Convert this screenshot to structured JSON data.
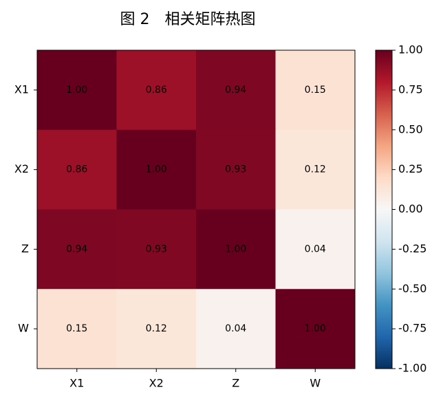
{
  "chart_data": {
    "type": "heatmap",
    "title": "图 2　相关矩阵热图",
    "x_categories": [
      "X1",
      "X2",
      "Z",
      "W"
    ],
    "y_categories": [
      "X1",
      "X2",
      "Z",
      "W"
    ],
    "values": [
      [
        1,
        0.86,
        0.94,
        0.15
      ],
      [
        0.86,
        1,
        0.93,
        0.12
      ],
      [
        0.94,
        0.93,
        1,
        0.04
      ],
      [
        0.15,
        0.12,
        0.04,
        1
      ]
    ],
    "value_labels": [
      [
        "1.00",
        "0.86",
        "0.94",
        "0.15"
      ],
      [
        "0.86",
        "1.00",
        "0.93",
        "0.12"
      ],
      [
        "0.94",
        "0.93",
        "1.00",
        "0.04"
      ],
      [
        "0.15",
        "0.12",
        "0.04",
        "1.00"
      ]
    ],
    "colormap": "RdBu_r",
    "clim": [
      -1,
      1
    ],
    "cticks": [
      {
        "value": 1,
        "label": "1.00"
      },
      0.75,
      {
        "value": 0.5,
        "label": "0.50"
      },
      0.25,
      {
        "value": 0,
        "label": "0.00"
      },
      -0.25,
      {
        "value": -0.5,
        "label": "-0.50"
      },
      -0.75,
      {
        "value": -1,
        "label": "-1.00"
      }
    ]
  }
}
